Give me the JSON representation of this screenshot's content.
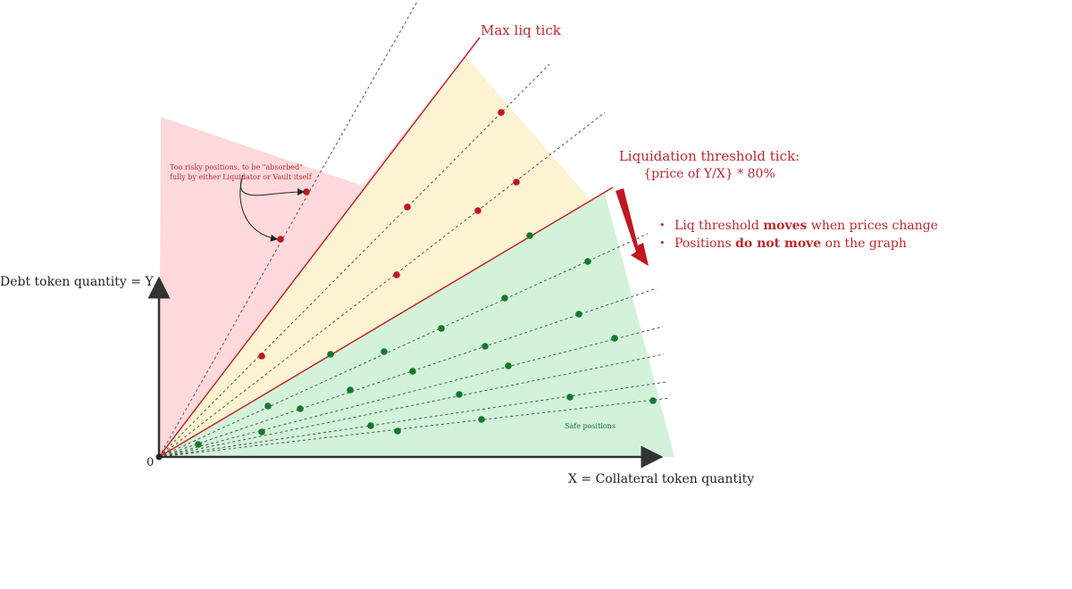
{
  "labels": {
    "max_liq_tick": "Max liq tick",
    "liq_threshold_line1": "Liquidation threshold tick:",
    "liq_threshold_line2": "{price of Y/X} * 80%",
    "y_axis": "Debt token quantity = Y",
    "x_axis": "X = Collateral token quantity",
    "origin": "0",
    "risky_note_line1": "Too risky positions, to be \"absorbed\"",
    "risky_note_line2": "fully by either Liquidator or Vault itself",
    "safe_positions": "Safe positions"
  },
  "notes": [
    {
      "before": "Liq threshold ",
      "bold": "moves",
      "after": " when prices change"
    },
    {
      "before": "Positions ",
      "bold": "do not move",
      "after": " on the graph"
    }
  ],
  "colors": {
    "risky_zone": "#fdd9dc",
    "warning_zone": "#fdf3d3",
    "safe_zone": "#d3f2da",
    "threshold_line": "#c0282d",
    "red_dot": "#c0181e",
    "green_dot": "#16782e",
    "axis": "#333333",
    "guide_line": "#555555"
  },
  "icons": {
    "arrow_down": "red-down-arrow-icon"
  }
}
